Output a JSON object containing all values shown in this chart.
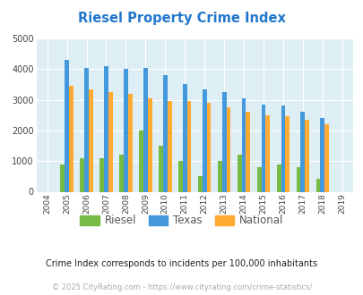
{
  "title": "Riesel Property Crime Index",
  "years": [
    "2004",
    "2005",
    "2006",
    "2007",
    "2008",
    "2009",
    "2010",
    "2011",
    "2012",
    "2013",
    "2014",
    "2015",
    "2016",
    "2017",
    "2018",
    "2019"
  ],
  "riesel": [
    0,
    900,
    1100,
    1100,
    1200,
    2000,
    1500,
    1000,
    500,
    1000,
    1200,
    800,
    900,
    800,
    420,
    0
  ],
  "texas": [
    0,
    4300,
    4050,
    4100,
    4000,
    4050,
    3800,
    3500,
    3350,
    3250,
    3050,
    2850,
    2800,
    2600,
    2400,
    0
  ],
  "national": [
    0,
    3450,
    3350,
    3250,
    3200,
    3050,
    2950,
    2950,
    2900,
    2750,
    2600,
    2500,
    2450,
    2350,
    2200,
    0
  ],
  "colors": {
    "riesel": "#77bb44",
    "texas": "#4499dd",
    "national": "#ffaa33"
  },
  "ylim": [
    0,
    5000
  ],
  "yticks": [
    0,
    1000,
    2000,
    3000,
    4000,
    5000
  ],
  "plot_bg": "#deeef5",
  "title_color": "#2277cc",
  "footnote1": "Crime Index corresponds to incidents per 100,000 inhabitants",
  "footnote2": "© 2025 CityRating.com - https://www.cityrating.com/crime-statistics/",
  "legend_labels": [
    "Riesel",
    "Texas",
    "National"
  ],
  "bar_width": 0.22
}
